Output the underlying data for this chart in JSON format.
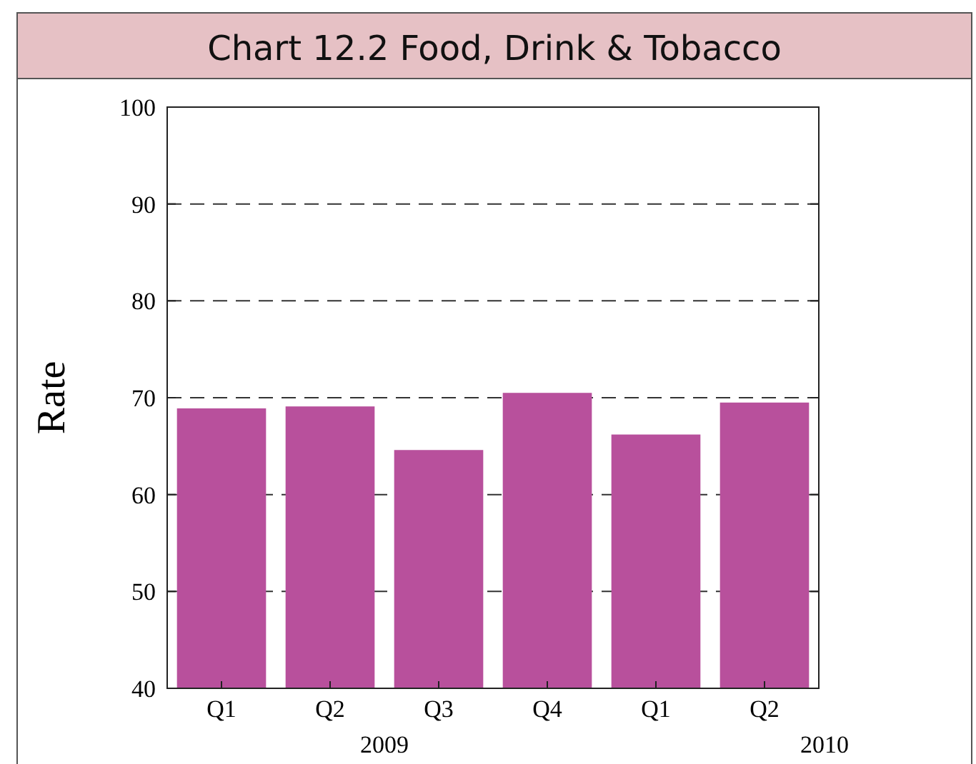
{
  "chart_data": {
    "type": "bar",
    "title": "Chart 12.2 Food, Drink & Tobacco",
    "ylabel": "Rate",
    "categories": [
      "Q1",
      "Q2",
      "Q3",
      "Q4",
      "Q1",
      "Q2"
    ],
    "values": [
      68.9,
      69.1,
      64.6,
      70.5,
      66.2,
      69.5
    ],
    "color": "#b8509c",
    "ylim": [
      40,
      100
    ],
    "yticks": [
      40,
      50,
      60,
      70,
      80,
      90,
      100
    ],
    "grid": "y",
    "annotations": [
      "2009",
      "2010"
    ]
  }
}
